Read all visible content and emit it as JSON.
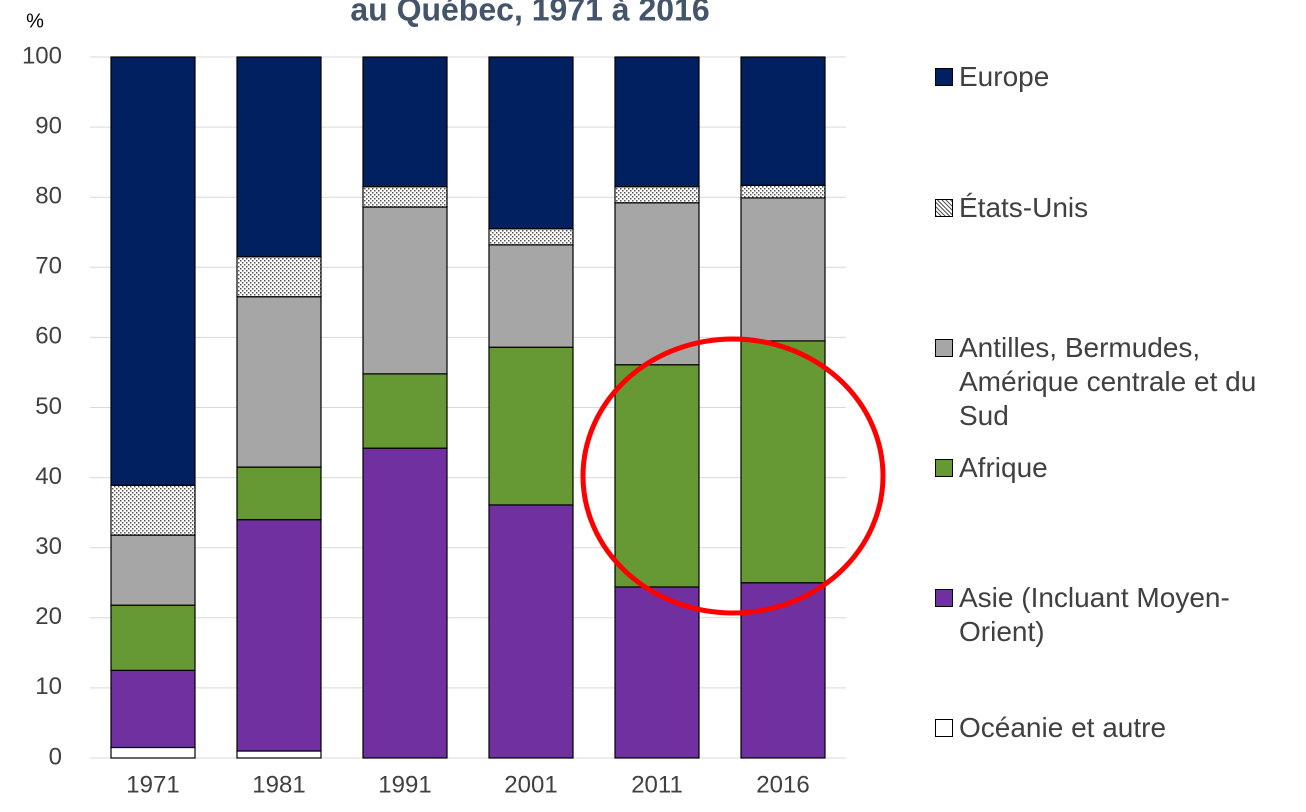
{
  "chart_data": {
    "type": "stacked-bar",
    "title": "au Québec, 1971 à 2016",
    "y_label": "%",
    "categories": [
      "1971",
      "1981",
      "1991",
      "2001",
      "2011",
      "2016"
    ],
    "series": [
      {
        "name": "Océanie et autre",
        "color": "#ffffff",
        "values": [
          1.5,
          1.0,
          0,
          0,
          0,
          0
        ]
      },
      {
        "name": "Asie (Incluant Moyen-Orient)",
        "color": "#7030a0",
        "values": [
          11,
          33,
          44.2,
          36.1,
          24.4,
          25.0
        ]
      },
      {
        "name": "Afrique",
        "color": "#669933",
        "values": [
          9.3,
          7.5,
          10.6,
          22.5,
          31.7,
          34.5
        ]
      },
      {
        "name": "Antilles, Bermudes, Amérique centrale et du Sud",
        "color": "#a6a6a6",
        "values": [
          10,
          24.3,
          23.8,
          14.6,
          23.1,
          20.4
        ]
      },
      {
        "name": "États-Unis",
        "color": "#d9d9d9",
        "pattern": "dots",
        "values": [
          7.1,
          5.7,
          2.9,
          2.3,
          2.3,
          1.8
        ]
      },
      {
        "name": "Europe",
        "color": "#002060",
        "values": [
          61.1,
          28.5,
          18.5,
          24.5,
          18.5,
          18.3
        ]
      }
    ],
    "ylim": [
      0,
      100
    ],
    "yticks": [
      0,
      10,
      20,
      30,
      40,
      50,
      60,
      70,
      80,
      90,
      100
    ],
    "grid": true,
    "legend": "right"
  }
}
